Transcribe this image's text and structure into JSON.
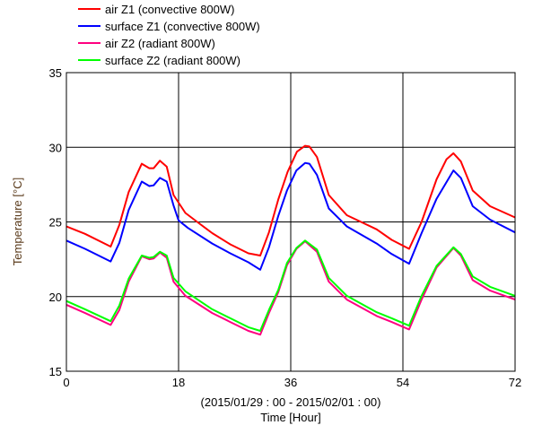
{
  "chart_data": {
    "type": "line",
    "title": "",
    "xlabel": "Time  [Hour]",
    "xsublabel": "(2015/01/29 : 00 - 2015/02/01 : 00)",
    "ylabel": "Temperature [°C]",
    "xlim": [
      0,
      72
    ],
    "ylim": [
      15,
      35
    ],
    "xticks": [
      0,
      18,
      36,
      54,
      72
    ],
    "yticks": [
      15,
      20,
      25,
      30,
      35
    ],
    "grid": true,
    "legend_position": "top-left-outside",
    "series": [
      {
        "name": "air Z1 (convective 800W)",
        "color": "#ff0000",
        "points": [
          [
            0,
            24.7
          ],
          [
            3,
            24.2
          ],
          [
            7.1,
            23.35
          ],
          [
            8.5,
            24.8
          ],
          [
            10,
            27
          ],
          [
            12.1,
            28.9
          ],
          [
            13.3,
            28.6
          ],
          [
            14,
            28.6
          ],
          [
            15,
            29.1
          ],
          [
            16.1,
            28.7
          ],
          [
            17.2,
            26.8
          ],
          [
            19.1,
            25.6
          ],
          [
            21,
            25.0
          ],
          [
            23.4,
            24.25
          ],
          [
            26.3,
            23.5
          ],
          [
            29.2,
            22.9
          ],
          [
            31.1,
            22.75
          ],
          [
            32.5,
            24.3
          ],
          [
            34,
            26.5
          ],
          [
            35.5,
            28.35
          ],
          [
            37,
            29.7
          ],
          [
            38.3,
            30.1
          ],
          [
            39,
            30.05
          ],
          [
            40.2,
            29.35
          ],
          [
            42.1,
            26.8
          ],
          [
            45,
            25.45
          ],
          [
            49.8,
            24.5
          ],
          [
            52.2,
            23.8
          ],
          [
            55,
            23.2
          ],
          [
            57,
            25.0
          ],
          [
            59.4,
            27.85
          ],
          [
            61,
            29.2
          ],
          [
            62.1,
            29.6
          ],
          [
            63.3,
            29.05
          ],
          [
            65.2,
            27.1
          ],
          [
            68,
            26.05
          ],
          [
            72,
            25.3
          ]
        ]
      },
      {
        "name": "surface Z1 (convective 800W)",
        "color": "#0000ff",
        "points": [
          [
            0,
            23.75
          ],
          [
            3,
            23.2
          ],
          [
            7.1,
            22.35
          ],
          [
            8.5,
            23.6
          ],
          [
            10,
            25.8
          ],
          [
            12.1,
            27.7
          ],
          [
            13.3,
            27.4
          ],
          [
            14,
            27.45
          ],
          [
            15,
            27.95
          ],
          [
            16.1,
            27.7
          ],
          [
            17.2,
            26.1
          ],
          [
            18,
            25.1
          ],
          [
            19.5,
            24.6
          ],
          [
            23.4,
            23.55
          ],
          [
            26.3,
            22.9
          ],
          [
            29.2,
            22.3
          ],
          [
            31.1,
            21.8
          ],
          [
            32.5,
            23.3
          ],
          [
            34,
            25.4
          ],
          [
            35.4,
            27.1
          ],
          [
            36.9,
            28.45
          ],
          [
            38.3,
            28.95
          ],
          [
            39,
            28.9
          ],
          [
            40.2,
            28.15
          ],
          [
            42.1,
            25.9
          ],
          [
            45,
            24.7
          ],
          [
            49.8,
            23.55
          ],
          [
            52.2,
            22.85
          ],
          [
            55,
            22.2
          ],
          [
            57,
            24.25
          ],
          [
            59.4,
            26.55
          ],
          [
            62.1,
            28.45
          ],
          [
            63.3,
            27.95
          ],
          [
            65.2,
            26.05
          ],
          [
            68,
            25.15
          ],
          [
            72,
            24.3
          ]
        ]
      },
      {
        "name": "air Z2 (radiant 800W)",
        "color": "#ff0080",
        "points": [
          [
            0,
            19.45
          ],
          [
            3,
            18.9
          ],
          [
            7.1,
            18.1
          ],
          [
            8.5,
            19.1
          ],
          [
            10,
            21
          ],
          [
            12.1,
            22.7
          ],
          [
            13.3,
            22.5
          ],
          [
            14,
            22.55
          ],
          [
            15,
            22.95
          ],
          [
            16.1,
            22.6
          ],
          [
            17.2,
            21.0
          ],
          [
            19.1,
            20.05
          ],
          [
            23.4,
            18.9
          ],
          [
            26.3,
            18.3
          ],
          [
            29.2,
            17.7
          ],
          [
            31.1,
            17.45
          ],
          [
            32.5,
            18.9
          ],
          [
            34,
            20.3
          ],
          [
            35.4,
            22.1
          ],
          [
            36.9,
            23.2
          ],
          [
            38.3,
            23.7
          ],
          [
            40.2,
            23.0
          ],
          [
            42.1,
            21.0
          ],
          [
            45,
            19.8
          ],
          [
            49.8,
            18.7
          ],
          [
            52.2,
            18.3
          ],
          [
            55,
            17.8
          ],
          [
            57,
            19.8
          ],
          [
            59.4,
            21.95
          ],
          [
            62.1,
            23.25
          ],
          [
            63.3,
            22.75
          ],
          [
            65.2,
            21.1
          ],
          [
            68,
            20.4
          ],
          [
            72,
            19.8
          ]
        ]
      },
      {
        "name": "surface Z2 (radiant 800W)",
        "color": "#00ff00",
        "points": [
          [
            0,
            19.7
          ],
          [
            3,
            19.15
          ],
          [
            7.1,
            18.35
          ],
          [
            8.5,
            19.4
          ],
          [
            10,
            21.2
          ],
          [
            12.1,
            22.75
          ],
          [
            13.3,
            22.6
          ],
          [
            14,
            22.65
          ],
          [
            15,
            23.0
          ],
          [
            16.1,
            22.75
          ],
          [
            17.2,
            21.25
          ],
          [
            19.1,
            20.35
          ],
          [
            23.4,
            19.15
          ],
          [
            26.3,
            18.55
          ],
          [
            29.2,
            17.95
          ],
          [
            31.1,
            17.7
          ],
          [
            32.5,
            19.1
          ],
          [
            34,
            20.45
          ],
          [
            35.4,
            22.25
          ],
          [
            36.9,
            23.25
          ],
          [
            38.3,
            23.75
          ],
          [
            40.2,
            23.15
          ],
          [
            42.1,
            21.25
          ],
          [
            45,
            20.05
          ],
          [
            49.8,
            18.95
          ],
          [
            52.2,
            18.55
          ],
          [
            55,
            18.05
          ],
          [
            57,
            20.05
          ],
          [
            59.4,
            22.05
          ],
          [
            62.1,
            23.3
          ],
          [
            63.3,
            22.85
          ],
          [
            65.2,
            21.35
          ],
          [
            68,
            20.65
          ],
          [
            72,
            20.05
          ]
        ]
      }
    ]
  }
}
